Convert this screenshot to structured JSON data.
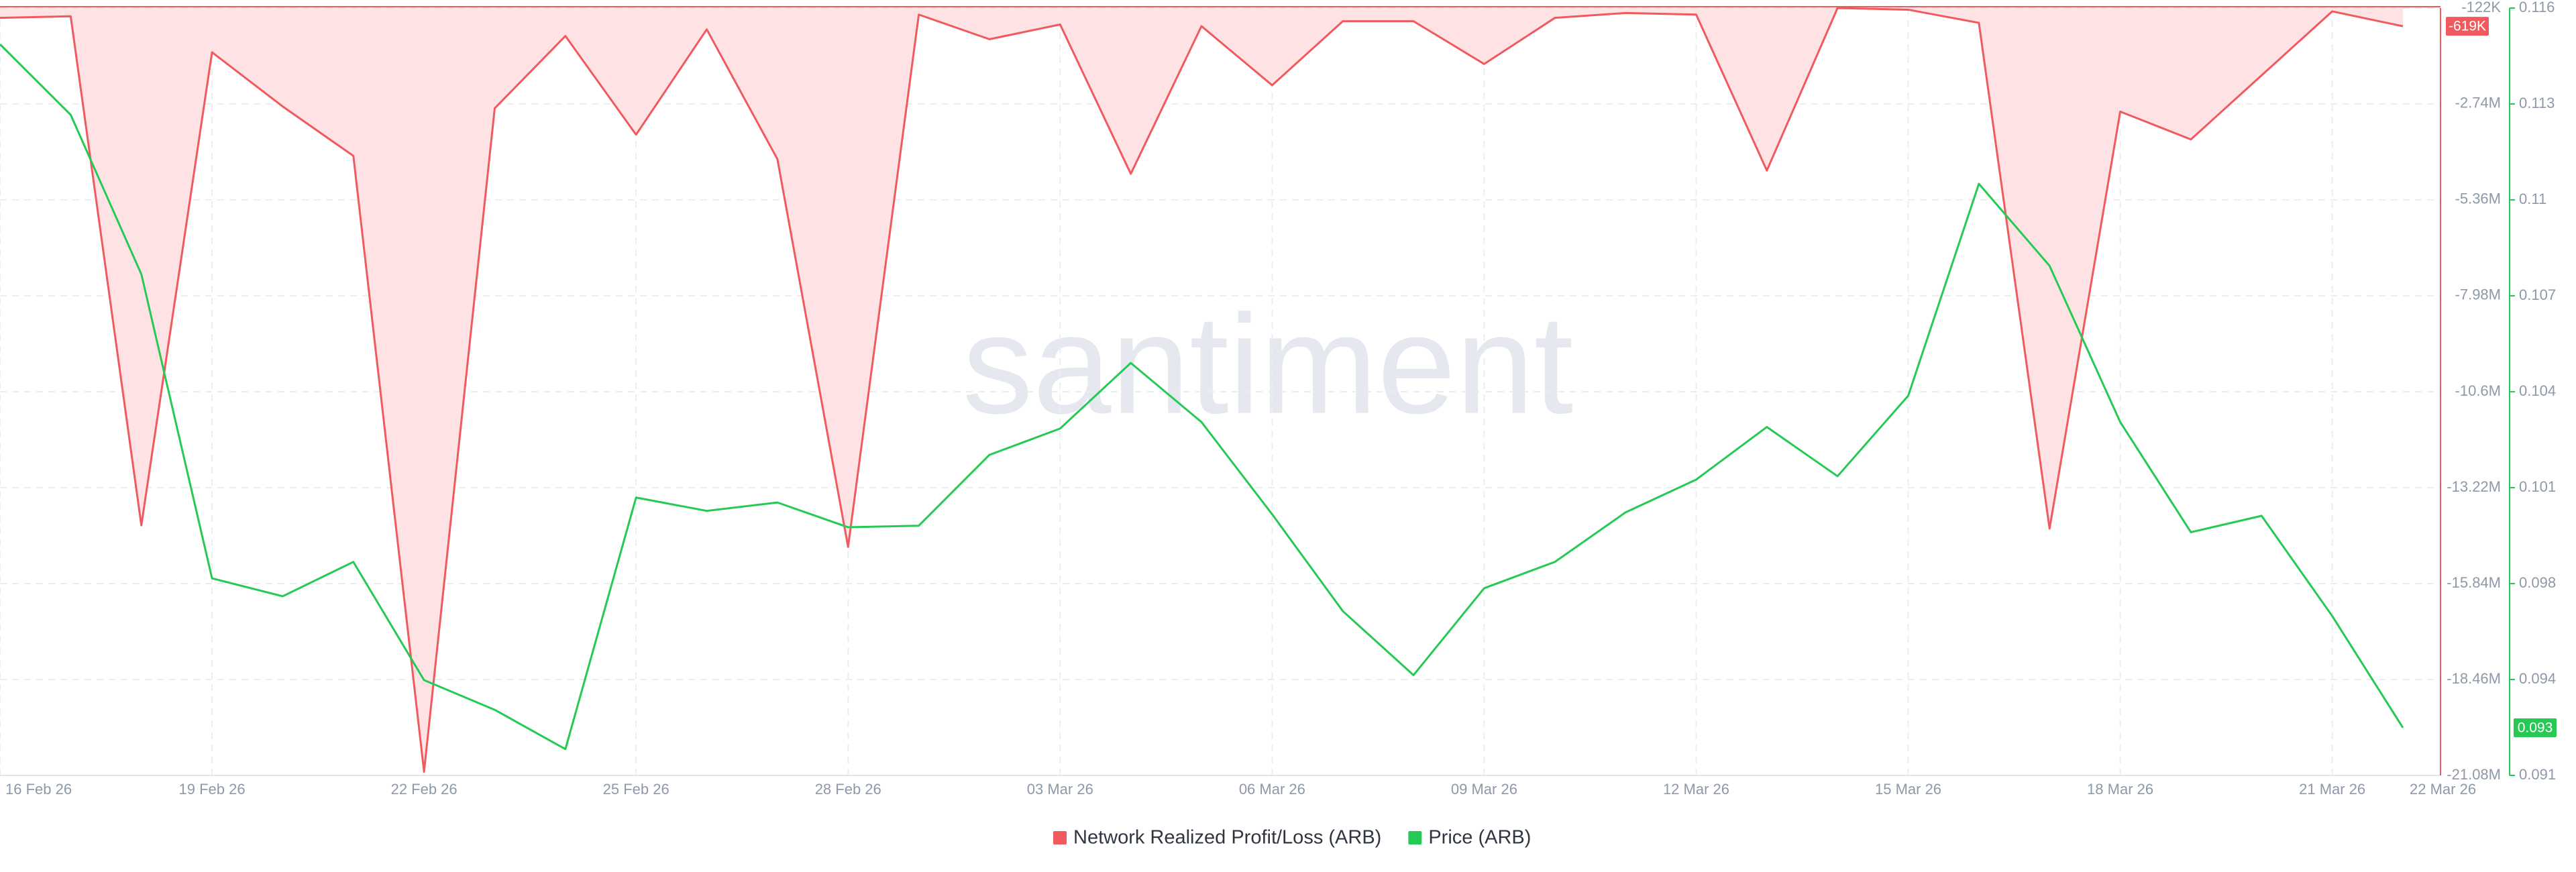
{
  "chart_data": {
    "type": "line",
    "watermark": "santiment",
    "categories": [
      "16 Feb 26",
      null,
      null,
      "19 Feb 26",
      null,
      null,
      "22 Feb 26",
      null,
      null,
      "25 Feb 26",
      null,
      null,
      "28 Feb 26",
      null,
      null,
      "03 Mar 26",
      null,
      null,
      "06 Mar 26",
      null,
      null,
      "09 Mar 26",
      null,
      null,
      "12 Mar 26",
      null,
      null,
      "15 Mar 26",
      null,
      null,
      "18 Mar 26",
      null,
      null,
      "21 Mar 26",
      "22 Mar 26"
    ],
    "series": [
      {
        "name": "Network Realized Profit/Loss (ARB)",
        "color": "#f05a5f",
        "fill": "#ffe3e4",
        "axis": "y",
        "values": [
          -391000,
          -346000,
          -14250000,
          -1330000,
          -2810000,
          -4160000,
          -20980000,
          -2860000,
          -885000,
          -3580000,
          -705000,
          -4250000,
          -14840000,
          -301000,
          -974000,
          -571000,
          -4650000,
          -616000,
          -2230000,
          -481000,
          -481000,
          -1650000,
          -391000,
          -257000,
          -301000,
          -4560000,
          -122000,
          -167000,
          -526000,
          -14340000,
          -2950000,
          -3710000,
          -1960000,
          -212000,
          -619000
        ],
        "value_labels": [
          null,
          null,
          null,
          null,
          null,
          null,
          null,
          null,
          null,
          null,
          null,
          null,
          null,
          null,
          null,
          null,
          null,
          null,
          null,
          null,
          null,
          null,
          null,
          null,
          null,
          null,
          null,
          null,
          null,
          null,
          null,
          null,
          null,
          null,
          "-619K"
        ]
      },
      {
        "name": "Price (ARB)",
        "color": "#26c953",
        "axis": "y2",
        "values": [
          0.11495,
          0.11267,
          0.10752,
          0.09769,
          0.09711,
          0.09822,
          0.0944,
          0.09344,
          0.09217,
          0.1003,
          0.09987,
          0.10014,
          0.09934,
          0.09939,
          0.10168,
          0.10253,
          0.10465,
          0.10274,
          0.09976,
          0.09663,
          0.09456,
          0.09737,
          0.09822,
          0.09982,
          0.10088,
          0.10258,
          0.10099,
          0.10359,
          0.11044,
          0.10779,
          0.10274,
          0.09918,
          0.09971,
          0.09647,
          0.09286
        ],
        "value_labels": [
          null,
          null,
          null,
          null,
          null,
          null,
          null,
          null,
          null,
          null,
          null,
          null,
          null,
          null,
          null,
          null,
          null,
          null,
          null,
          null,
          null,
          null,
          null,
          null,
          null,
          null,
          null,
          null,
          null,
          null,
          null,
          null,
          null,
          null,
          "0.093"
        ]
      }
    ],
    "ylim": [
      -21080000,
      -122000
    ],
    "yticks": [
      {
        "value": -122000,
        "label": "-122K"
      },
      {
        "value": -2740000,
        "label": "-2.74M"
      },
      {
        "value": -5360000,
        "label": "-5.36M"
      },
      {
        "value": -7980000,
        "label": "-7.98M"
      },
      {
        "value": -10600000,
        "label": "-10.6M"
      },
      {
        "value": -13220000,
        "label": "-13.22M"
      },
      {
        "value": -15840000,
        "label": "-15.84M"
      },
      {
        "value": -18460000,
        "label": "-18.46M"
      },
      {
        "value": -21080000,
        "label": "-21.08M"
      }
    ],
    "y2lim": [
      0.09132,
      0.11612
    ],
    "y2ticks": [
      {
        "value": 0.11612,
        "label": "0.116"
      },
      {
        "value": 0.11302,
        "label": "0.113"
      },
      {
        "value": 0.10992,
        "label": "0.11"
      },
      {
        "value": 0.10682,
        "label": "0.107"
      },
      {
        "value": 0.10372,
        "label": "0.104"
      },
      {
        "value": 0.10062,
        "label": "0.101"
      },
      {
        "value": 0.09752,
        "label": "0.098"
      },
      {
        "value": 0.09442,
        "label": "0.094"
      },
      {
        "value": 0.09132,
        "label": "0.091"
      }
    ],
    "grid": true
  }
}
